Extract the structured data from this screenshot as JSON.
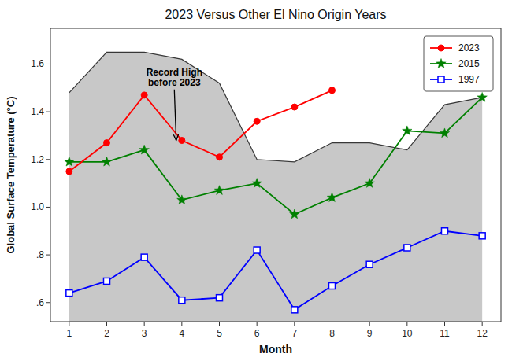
{
  "chart_data": {
    "type": "line",
    "title": "2023 Versus Other El Nino Origin Years",
    "xlabel": "Month",
    "ylabel": "Global Surface Temperature (°C)",
    "x": [
      1,
      2,
      3,
      4,
      5,
      6,
      7,
      8,
      9,
      10,
      11,
      12
    ],
    "xlim": [
      0.5,
      12.5
    ],
    "xticks": [
      1,
      2,
      3,
      4,
      5,
      6,
      7,
      8,
      9,
      10,
      11,
      12
    ],
    "ylim": [
      0.52,
      1.75
    ],
    "yticks": [
      {
        "value": 0.6,
        "label": ".6"
      },
      {
        "value": 0.8,
        "label": ".8"
      },
      {
        "value": 1.0,
        "label": "1.0"
      },
      1.2,
      1.4,
      1.6
    ],
    "grid": false,
    "legend": "upper right",
    "series": [
      {
        "type": "area",
        "color": "#c8c8c8",
        "values": [
          1.48,
          1.65,
          1.65,
          1.62,
          1.52,
          1.2,
          1.19,
          1.27,
          1.27,
          1.24,
          1.43,
          1.46
        ]
      },
      {
        "name": "2023",
        "type": "line",
        "color": "#ff0000",
        "marker": "circle",
        "values": [
          1.15,
          1.27,
          1.47,
          1.28,
          1.21,
          1.36,
          1.42,
          1.49,
          null,
          null,
          null,
          null
        ]
      },
      {
        "name": "2015",
        "type": "line",
        "color": "#008000",
        "marker": "star",
        "values": [
          1.19,
          1.19,
          1.24,
          1.03,
          1.07,
          1.1,
          0.97,
          1.04,
          1.1,
          1.32,
          1.31,
          1.46
        ]
      },
      {
        "name": "1997",
        "type": "line",
        "color": "#0000ff",
        "marker": "square",
        "values": [
          0.64,
          0.69,
          0.79,
          0.61,
          0.62,
          0.82,
          0.57,
          0.67,
          0.76,
          0.83,
          0.9,
          0.88
        ]
      }
    ],
    "annotations": [
      {
        "text": "Record High\nbefore 2023",
        "x": 3.85,
        "y": 1.28,
        "text_x": 3.8,
        "text_y": 1.5
      }
    ]
  }
}
